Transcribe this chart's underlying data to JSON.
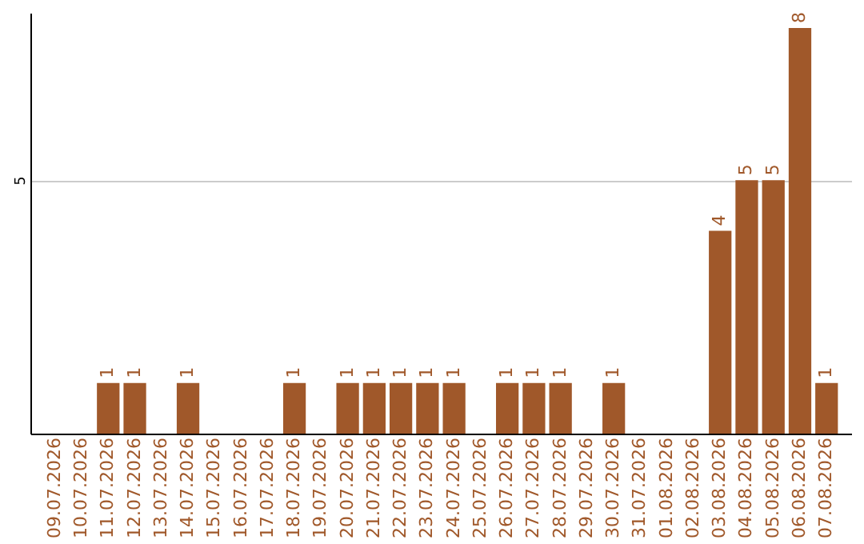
{
  "chart_data": {
    "type": "bar",
    "categories": [
      "09.07.2026",
      "10.07.2026",
      "11.07.2026",
      "12.07.2026",
      "13.07.2026",
      "14.07.2026",
      "15.07.2026",
      "16.07.2026",
      "17.07.2026",
      "18.07.2026",
      "19.07.2026",
      "20.07.2026",
      "21.07.2026",
      "22.07.2026",
      "23.07.2026",
      "24.07.2026",
      "25.07.2026",
      "26.07.2026",
      "27.07.2026",
      "28.07.2026",
      "29.07.2026",
      "30.07.2026",
      "31.07.2026",
      "01.08.2026",
      "02.08.2026",
      "03.08.2026",
      "04.08.2026",
      "05.08.2026",
      "06.08.2026",
      "07.08.2026"
    ],
    "values": [
      0,
      0,
      1,
      1,
      0,
      1,
      0,
      0,
      0,
      1,
      0,
      1,
      1,
      1,
      1,
      1,
      0,
      1,
      1,
      1,
      0,
      1,
      0,
      0,
      0,
      4,
      5,
      5,
      8,
      1
    ],
    "value_labels": [
      null,
      null,
      "1",
      "1",
      null,
      "1",
      null,
      null,
      null,
      "1",
      null,
      "1",
      "1",
      "1",
      "1",
      "1",
      null,
      "1",
      "1",
      "1",
      null,
      "1",
      null,
      null,
      null,
      "4",
      "5",
      "5",
      "8",
      "1"
    ],
    "color": "#a0582a",
    "ylim": [
      0,
      8.3
    ],
    "yticks": [
      5
    ],
    "grid": "y"
  }
}
